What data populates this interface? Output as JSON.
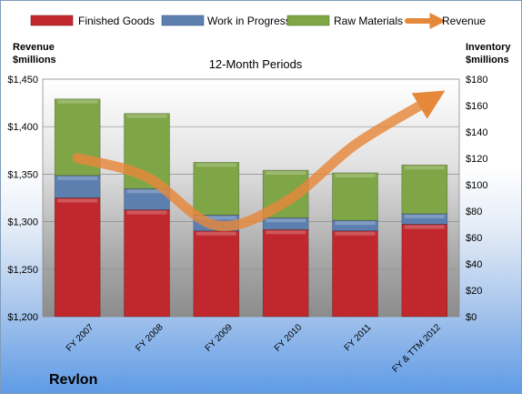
{
  "chart_data": {
    "type": "bar",
    "stacked": true,
    "subtitle": "12-Month Periods",
    "company": "Revlon",
    "y_left_title": [
      "Revenue",
      "$millions"
    ],
    "y_right_title": [
      "Inventory",
      "$millions"
    ],
    "categories": [
      "FY 2007",
      "FY 2008",
      "FY 2009",
      "FY 2010",
      "FY 2011",
      "FY & TTM 2012"
    ],
    "left_ylim": [
      1200,
      1450
    ],
    "right_ylim": [
      0,
      180
    ],
    "left_ticks": [
      "$1,200",
      "$1,250",
      "$1,300",
      "$1,350",
      "$1,400",
      "$1,450"
    ],
    "right_ticks": [
      "$0",
      "$20",
      "$40",
      "$60",
      "$80",
      "$100",
      "$120",
      "$140",
      "$160",
      "$180"
    ],
    "series": [
      {
        "name": "Finished Goods",
        "axis": "right",
        "color": "#c0282d",
        "values": [
          90,
          81,
          65,
          66,
          65,
          70
        ]
      },
      {
        "name": "Work in Progress",
        "axis": "right",
        "color": "#5d7fb0",
        "values": [
          17,
          16,
          12,
          9,
          8,
          8
        ]
      },
      {
        "name": "Raw Materials",
        "axis": "right",
        "color": "#7ea646",
        "values": [
          58,
          57,
          40,
          36,
          36,
          37
        ]
      },
      {
        "name": "Revenue",
        "axis": "left",
        "color": "#e6883a",
        "type": "line",
        "values": [
          1367,
          1347,
          1296,
          1321,
          1381,
          1425
        ]
      }
    ],
    "legend_position": "top",
    "grid": true
  }
}
